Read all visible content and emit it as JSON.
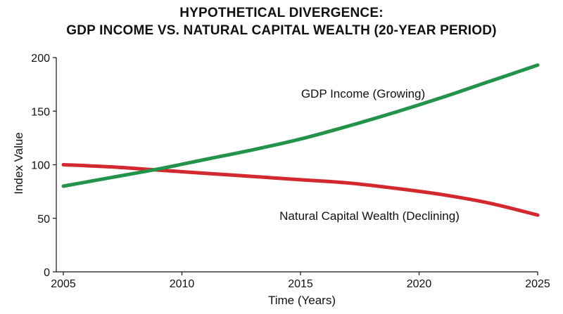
{
  "chart_data": {
    "type": "line",
    "title_line1": "HYPOTHETICAL DIVERGENCE:",
    "title_line2": "GDP INCOME VS. NATURAL CAPITAL WEALTH (20-YEAR PERIOD)",
    "xlabel": "Time (Years)",
    "ylabel": "Index Value",
    "xlim": [
      2005,
      2025
    ],
    "ylim": [
      0,
      200
    ],
    "x_ticks": [
      "2005",
      "2010",
      "2015",
      "2020",
      "2025"
    ],
    "y_ticks": [
      "0",
      "50",
      "100",
      "150",
      "200"
    ],
    "grid": false,
    "series": [
      {
        "name": "GDP Income (Growing)",
        "color": "#23924a",
        "x": [
          2005,
          2007,
          2009,
          2011,
          2013,
          2015,
          2017,
          2019,
          2021,
          2023,
          2025
        ],
        "y": [
          80,
          88,
          96,
          105,
          114,
          124,
          136,
          149,
          163,
          178,
          193
        ]
      },
      {
        "name": "Natural Capital Wealth (Declining)",
        "color": "#d3282e",
        "x": [
          2005,
          2007,
          2009,
          2011,
          2013,
          2015,
          2017,
          2019,
          2021,
          2023,
          2025
        ],
        "y": [
          100,
          98,
          95,
          92,
          89,
          86,
          83,
          78,
          72,
          64,
          53
        ]
      }
    ]
  }
}
